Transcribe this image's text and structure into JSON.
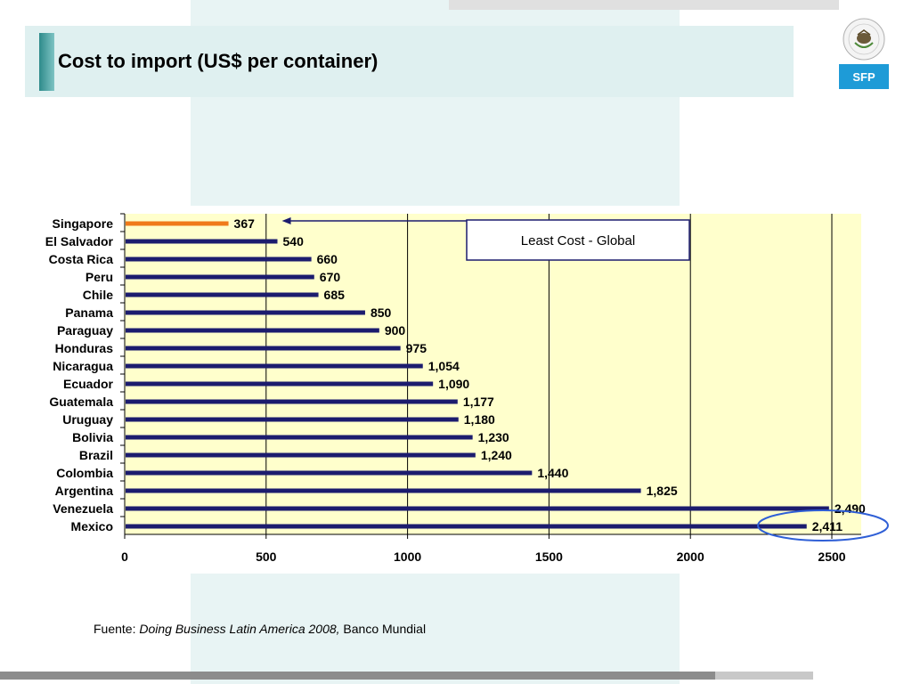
{
  "slide": {
    "title": "Cost to import (US$ per container)",
    "source_prefix": "Fuente: ",
    "source_italic": "Doing Business Latin America 2008,",
    "source_suffix": " Banco Mundial",
    "logo_text": "SFP",
    "logo_seal_text": "ESTADOS UNIDOS MEXICANOS",
    "colors": {
      "accent_teal": "#2e8b8b",
      "logo_blue": "#1e9bd7",
      "bar_navy": "#1c1c6e",
      "bar_highlight": "#f07a1a",
      "plot_bg": "#ffffcc",
      "ellipse": "#2f5fd6"
    }
  },
  "chart_data": {
    "type": "bar",
    "orientation": "horizontal",
    "title": "Cost to import (US$ per container)",
    "categories": [
      "Singapore",
      "El Salvador",
      "Costa Rica",
      "Peru",
      "Chile",
      "Panama",
      "Paraguay",
      "Honduras",
      "Nicaragua",
      "Ecuador",
      "Guatemala",
      "Uruguay",
      "Bolivia",
      "Brazil",
      "Colombia",
      "Argentina",
      "Venezuela",
      "Mexico"
    ],
    "values": [
      367,
      540,
      660,
      670,
      685,
      850,
      900,
      975,
      1054,
      1090,
      1177,
      1180,
      1230,
      1240,
      1440,
      1825,
      2490,
      2411
    ],
    "value_labels": [
      "367",
      "540",
      "660",
      "670",
      "685",
      "850",
      "900",
      "975",
      "1,054",
      "1,090",
      "1,177",
      "1,180",
      "1,230",
      "1,240",
      "1,440",
      "1,825",
      "2,490",
      "2,411"
    ],
    "highlight_category": "Singapore",
    "xlim": [
      0,
      2600
    ],
    "xticks": [
      0,
      500,
      1000,
      1500,
      2000,
      2500
    ],
    "xtick_labels": [
      "0",
      "500",
      "1000",
      "1500",
      "2000",
      "2500"
    ],
    "grid": "vertical",
    "annotation": {
      "text": "Least Cost - Global",
      "points_to": "Singapore"
    },
    "circled_category": "Mexico"
  }
}
